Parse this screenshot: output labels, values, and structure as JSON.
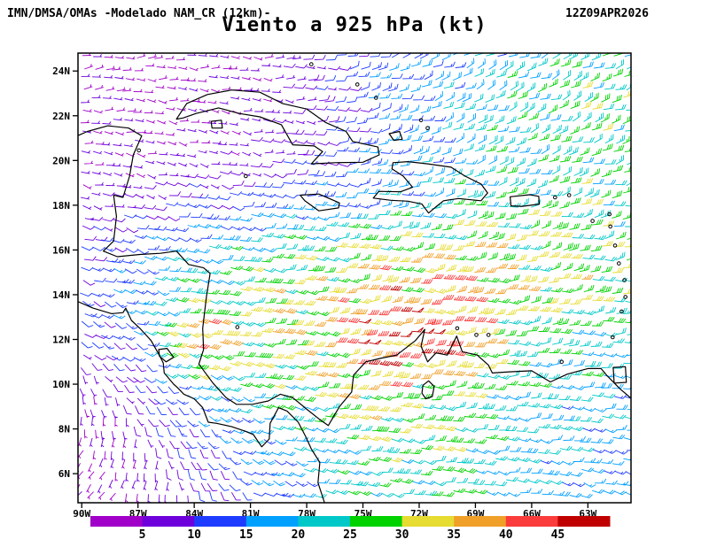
{
  "header": {
    "left": "IMN/DMSA/OMAs -Modelado NAM_CR (12km)-",
    "right": "12Z09APR2026",
    "title": "Viento a 925 hPa (kt)"
  },
  "chart_data": {
    "type": "heatmap",
    "subtype": "wind-barb-field",
    "title": "Viento a 925 hPa (kt)",
    "model": "NAM_CR (12km)",
    "agency": "IMN/DMSA/OMAs",
    "valid_time": "12Z09APR2026",
    "level": "925 hPa",
    "units": "kt",
    "lon_range": [
      -90.2,
      -60.7
    ],
    "lat_range": [
      4.7,
      24.8
    ],
    "lat_ticks": [
      {
        "v": 24,
        "label": "24N"
      },
      {
        "v": 22,
        "label": "22N"
      },
      {
        "v": 20,
        "label": "20N"
      },
      {
        "v": 18,
        "label": "18N"
      },
      {
        "v": 16,
        "label": "16N"
      },
      {
        "v": 14,
        "label": "14N"
      },
      {
        "v": 12,
        "label": "12N"
      },
      {
        "v": 10,
        "label": "10N"
      },
      {
        "v": 8,
        "label": "8N"
      },
      {
        "v": 6,
        "label": "6N"
      }
    ],
    "lon_ticks": [
      {
        "v": -90,
        "label": "90W"
      },
      {
        "v": -87,
        "label": "87W"
      },
      {
        "v": -84,
        "label": "84W"
      },
      {
        "v": -81,
        "label": "81W"
      },
      {
        "v": -78,
        "label": "78W"
      },
      {
        "v": -75,
        "label": "75W"
      },
      {
        "v": -72,
        "label": "72W"
      },
      {
        "v": -69,
        "label": "69W"
      },
      {
        "v": -66,
        "label": "66W"
      },
      {
        "v": -63,
        "label": "63W"
      }
    ],
    "colorbar": {
      "labels": [
        5,
        10,
        15,
        20,
        25,
        30,
        35,
        40,
        45
      ],
      "colors": [
        "#a000c8",
        "#6e00dc",
        "#1e3cff",
        "#00a0ff",
        "#00c8c8",
        "#00d200",
        "#e6dc32",
        "#f0a028",
        "#fa3c3c",
        "#c00000"
      ]
    },
    "wind_grid": {
      "lons": [
        -90.5,
        -87,
        -84,
        -81,
        -78,
        -74.5,
        -71,
        -67,
        -60.5
      ],
      "lats": [
        25,
        22.5,
        20,
        18,
        16,
        14,
        12,
        9.5,
        7,
        4.5
      ],
      "speed_kt": [
        [
          4,
          4,
          5,
          5,
          8,
          14,
          15,
          20,
          22
        ],
        [
          5,
          4,
          4,
          6,
          7,
          13,
          17,
          23,
          28
        ],
        [
          5,
          5,
          6,
          7,
          9,
          14,
          18,
          22,
          25
        ],
        [
          6,
          8,
          11,
          13,
          15,
          17,
          21,
          25,
          26
        ],
        [
          8,
          14,
          18,
          22,
          25,
          29,
          31,
          30,
          26
        ],
        [
          10,
          18,
          25,
          28,
          31,
          37,
          39,
          32,
          27
        ],
        [
          8,
          14,
          40,
          30,
          33,
          43,
          44,
          26,
          20
        ],
        [
          5,
          8,
          16,
          22,
          27,
          33,
          28,
          22,
          18
        ],
        [
          4,
          6,
          10,
          15,
          19,
          25,
          26,
          20,
          16
        ],
        [
          4,
          5,
          8,
          12,
          17,
          22,
          24,
          18,
          14
        ]
      ],
      "dir_from_deg": [
        [
          80,
          85,
          92,
          95,
          90,
          76,
          70,
          66,
          70
        ],
        [
          90,
          96,
          102,
          100,
          95,
          82,
          73,
          68,
          72
        ],
        [
          100,
          102,
          106,
          102,
          96,
          86,
          78,
          73,
          75
        ],
        [
          106,
          106,
          106,
          101,
          96,
          90,
          83,
          78,
          80
        ],
        [
          110,
          108,
          105,
          100,
          96,
          92,
          88,
          85,
          85
        ],
        [
          116,
          110,
          105,
          100,
          95,
          92,
          90,
          88,
          88
        ],
        [
          130,
          115,
          105,
          100,
          96,
          92,
          90,
          90,
          92
        ],
        [
          170,
          140,
          116,
          106,
          100,
          95,
          92,
          95,
          98
        ],
        [
          210,
          185,
          150,
          116,
          105,
          100,
          98,
          100,
          102
        ],
        [
          225,
          205,
          180,
          130,
          110,
          105,
          102,
          105,
          108
        ]
      ]
    }
  },
  "map": {
    "coastlines": [
      {
        "name": "cuba",
        "closed": true,
        "points": [
          [
            -84.95,
            21.85
          ],
          [
            -84.4,
            22.55
          ],
          [
            -83.3,
            22.95
          ],
          [
            -82.0,
            23.15
          ],
          [
            -80.5,
            23.05
          ],
          [
            -79.3,
            22.55
          ],
          [
            -78.0,
            22.3
          ],
          [
            -77.0,
            21.7
          ],
          [
            -75.9,
            21.3
          ],
          [
            -75.55,
            20.85
          ],
          [
            -74.2,
            20.6
          ],
          [
            -74.13,
            20.25
          ],
          [
            -75.0,
            19.92
          ],
          [
            -76.5,
            19.9
          ],
          [
            -77.75,
            19.85
          ],
          [
            -77.15,
            20.4
          ],
          [
            -77.6,
            20.65
          ],
          [
            -78.75,
            20.7
          ],
          [
            -79.35,
            21.6
          ],
          [
            -80.5,
            21.95
          ],
          [
            -81.6,
            22.1
          ],
          [
            -82.7,
            22.35
          ],
          [
            -83.9,
            22.1
          ],
          [
            -84.6,
            21.9
          ]
        ]
      },
      {
        "name": "isla-juventud",
        "closed": true,
        "points": [
          [
            -83.1,
            21.75
          ],
          [
            -82.55,
            21.8
          ],
          [
            -82.5,
            21.45
          ],
          [
            -83.05,
            21.45
          ]
        ]
      },
      {
        "name": "jamaica",
        "closed": true,
        "points": [
          [
            -78.35,
            18.45
          ],
          [
            -77.35,
            18.5
          ],
          [
            -76.25,
            18.1
          ],
          [
            -76.3,
            17.88
          ],
          [
            -77.35,
            17.75
          ],
          [
            -78.1,
            18.2
          ]
        ]
      },
      {
        "name": "hispaniola",
        "closed": true,
        "points": [
          [
            -73.4,
            19.9
          ],
          [
            -72.6,
            19.95
          ],
          [
            -71.55,
            19.85
          ],
          [
            -70.3,
            19.7
          ],
          [
            -69.55,
            19.3
          ],
          [
            -68.7,
            18.95
          ],
          [
            -68.35,
            18.55
          ],
          [
            -68.7,
            18.2
          ],
          [
            -69.9,
            18.3
          ],
          [
            -70.7,
            18.2
          ],
          [
            -71.15,
            17.9
          ],
          [
            -71.5,
            17.65
          ],
          [
            -71.85,
            18.05
          ],
          [
            -72.6,
            18.18
          ],
          [
            -73.5,
            18.22
          ],
          [
            -74.45,
            18.32
          ],
          [
            -74.15,
            18.62
          ],
          [
            -73.0,
            18.6
          ],
          [
            -72.35,
            18.8
          ],
          [
            -72.85,
            19.3
          ],
          [
            -73.45,
            19.63
          ]
        ]
      },
      {
        "name": "puerto-rico",
        "closed": true,
        "points": [
          [
            -67.15,
            18.38
          ],
          [
            -66.1,
            18.47
          ],
          [
            -65.62,
            18.4
          ],
          [
            -65.6,
            18.05
          ],
          [
            -66.5,
            17.95
          ],
          [
            -67.1,
            17.97
          ]
        ]
      },
      {
        "name": "central-america-caribbean",
        "closed": false,
        "points": [
          [
            -90.5,
            21.0
          ],
          [
            -89.7,
            21.3
          ],
          [
            -88.6,
            21.55
          ],
          [
            -87.5,
            21.45
          ],
          [
            -86.8,
            21.1
          ],
          [
            -87.25,
            20.25
          ],
          [
            -87.45,
            19.3
          ],
          [
            -87.8,
            18.35
          ],
          [
            -88.3,
            18.45
          ],
          [
            -88.15,
            17.5
          ],
          [
            -88.3,
            16.4
          ],
          [
            -88.85,
            15.95
          ],
          [
            -88.1,
            15.7
          ],
          [
            -86.9,
            15.8
          ],
          [
            -85.8,
            15.85
          ],
          [
            -84.95,
            15.95
          ],
          [
            -84.3,
            15.35
          ],
          [
            -83.5,
            15.2
          ],
          [
            -83.15,
            14.95
          ],
          [
            -83.35,
            13.9
          ],
          [
            -83.55,
            12.5
          ],
          [
            -83.5,
            11.55
          ],
          [
            -83.75,
            10.9
          ],
          [
            -83.0,
            10.05
          ],
          [
            -82.3,
            9.4
          ],
          [
            -81.75,
            9.1
          ],
          [
            -80.9,
            9.1
          ],
          [
            -80.05,
            9.25
          ],
          [
            -79.4,
            9.55
          ],
          [
            -78.75,
            9.4
          ],
          [
            -77.95,
            8.85
          ],
          [
            -77.35,
            8.45
          ],
          [
            -76.85,
            8.15
          ],
          [
            -76.25,
            9.0
          ],
          [
            -75.6,
            9.65
          ],
          [
            -75.5,
            10.4
          ],
          [
            -74.85,
            11.0
          ],
          [
            -74.1,
            11.15
          ],
          [
            -73.2,
            11.3
          ],
          [
            -72.2,
            11.95
          ],
          [
            -71.7,
            12.45
          ],
          [
            -71.9,
            11.7
          ],
          [
            -71.55,
            11.0
          ],
          [
            -71.1,
            11.4
          ],
          [
            -70.5,
            11.3
          ],
          [
            -70.0,
            12.15
          ],
          [
            -69.7,
            11.45
          ],
          [
            -68.9,
            11.3
          ],
          [
            -68.3,
            10.85
          ],
          [
            -68.1,
            10.5
          ],
          [
            -67.2,
            10.55
          ],
          [
            -66.0,
            10.6
          ],
          [
            -65.0,
            10.1
          ],
          [
            -64.1,
            10.45
          ],
          [
            -63.0,
            10.7
          ],
          [
            -62.3,
            10.7
          ],
          [
            -62.0,
            10.4
          ],
          [
            -61.3,
            9.8
          ],
          [
            -60.6,
            9.3
          ]
        ]
      },
      {
        "name": "pacific-coast",
        "closed": false,
        "points": [
          [
            -90.5,
            13.8
          ],
          [
            -89.4,
            13.4
          ],
          [
            -88.4,
            13.15
          ],
          [
            -87.8,
            13.2
          ],
          [
            -87.65,
            13.4
          ],
          [
            -87.35,
            12.85
          ],
          [
            -86.9,
            12.5
          ],
          [
            -86.3,
            11.95
          ],
          [
            -85.9,
            11.35
          ],
          [
            -85.65,
            10.95
          ],
          [
            -85.6,
            10.5
          ],
          [
            -85.1,
            10.0
          ],
          [
            -84.9,
            9.85
          ],
          [
            -84.55,
            9.55
          ],
          [
            -84.0,
            9.35
          ],
          [
            -83.55,
            8.95
          ],
          [
            -83.25,
            8.3
          ],
          [
            -82.8,
            8.25
          ],
          [
            -82.0,
            8.1
          ],
          [
            -81.3,
            7.9
          ],
          [
            -80.85,
            7.75
          ],
          [
            -80.4,
            7.2
          ],
          [
            -80.0,
            7.55
          ],
          [
            -79.95,
            8.25
          ],
          [
            -79.5,
            8.95
          ],
          [
            -79.05,
            8.8
          ],
          [
            -78.45,
            8.3
          ],
          [
            -78.05,
            7.65
          ],
          [
            -77.75,
            7.1
          ],
          [
            -77.3,
            6.5
          ],
          [
            -77.4,
            5.6
          ],
          [
            -77.05,
            4.7
          ]
        ]
      },
      {
        "name": "lake-nicaragua",
        "closed": true,
        "points": [
          [
            -85.9,
            11.55
          ],
          [
            -85.45,
            11.6
          ],
          [
            -85.1,
            11.2
          ],
          [
            -85.5,
            11.0
          ],
          [
            -85.85,
            11.25
          ]
        ]
      },
      {
        "name": "lake-maracaibo",
        "closed": true,
        "points": [
          [
            -71.8,
            9.95
          ],
          [
            -71.5,
            10.15
          ],
          [
            -71.2,
            9.9
          ],
          [
            -71.3,
            9.45
          ],
          [
            -71.65,
            9.35
          ],
          [
            -71.85,
            9.6
          ]
        ]
      },
      {
        "name": "trinidad",
        "closed": true,
        "points": [
          [
            -61.65,
            10.75
          ],
          [
            -61.0,
            10.78
          ],
          [
            -60.95,
            10.08
          ],
          [
            -61.6,
            10.05
          ]
        ]
      },
      {
        "name": "great-inagua",
        "closed": true,
        "points": [
          [
            -73.6,
            21.2
          ],
          [
            -73.05,
            21.3
          ],
          [
            -72.9,
            20.95
          ],
          [
            -73.35,
            20.9
          ]
        ]
      }
    ],
    "small_islands": [
      [
        -86.95,
        20.45
      ],
      [
        -81.25,
        19.3
      ],
      [
        -77.75,
        24.3
      ],
      [
        -75.3,
        23.4
      ],
      [
        -74.3,
        22.8
      ],
      [
        -71.9,
        21.8
      ],
      [
        -71.55,
        21.45
      ],
      [
        -64.75,
        18.35
      ],
      [
        -64.0,
        18.45
      ],
      [
        -62.75,
        17.3
      ],
      [
        -61.85,
        17.6
      ],
      [
        -61.8,
        17.05
      ],
      [
        -61.55,
        16.2
      ],
      [
        -61.35,
        15.4
      ],
      [
        -61.05,
        14.65
      ],
      [
        -61.0,
        13.9
      ],
      [
        -61.2,
        13.25
      ],
      [
        -61.68,
        12.1
      ],
      [
        -64.4,
        11.0
      ],
      [
        -69.97,
        12.5
      ],
      [
        -68.95,
        12.2
      ],
      [
        -68.3,
        12.2
      ],
      [
        -81.7,
        12.55
      ]
    ]
  }
}
